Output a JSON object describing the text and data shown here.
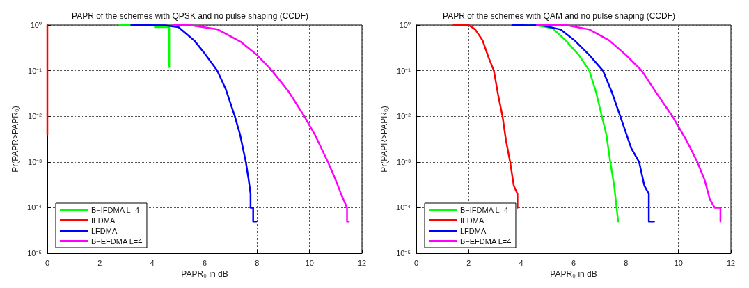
{
  "chart_data": [
    {
      "type": "line",
      "title": "PAPR of the schemes with QPSK and no pulse shaping (CCDF)",
      "xlabel": "PAPR₀ in dB",
      "ylabel": "Pr(PAPR>PAPR₀)",
      "log": "y",
      "grid": true,
      "legend": "bottom left",
      "line_style": "solid",
      "marker": "none",
      "xlim": [
        0,
        12
      ],
      "xticks": [
        0,
        2,
        4,
        6,
        8,
        10,
        12
      ],
      "ylim": [
        1e-05,
        1
      ],
      "yticks": [
        {
          "value": 1e-05,
          "label": "10⁻⁵"
        },
        {
          "value": 0.0001,
          "label": "10⁻⁴"
        },
        {
          "value": 0.001,
          "label": "10⁻³"
        },
        {
          "value": 0.01,
          "label": "10⁻²"
        },
        {
          "value": 0.1,
          "label": "10⁻¹"
        },
        {
          "value": 1,
          "label": "10⁰"
        }
      ],
      "series": [
        {
          "name": "B−IFDMA L=4",
          "color": "#00ff00",
          "x": [
            2.75,
            4.1,
            4.1,
            4.65,
            4.65
          ],
          "values": [
            1,
            1,
            0.9,
            0.9,
            0.12
          ]
        },
        {
          "name": "IFDMA",
          "color": "#ff0000",
          "x": [
            0,
            0
          ],
          "values": [
            1,
            0.004
          ]
        },
        {
          "name": "LFDMA",
          "color": "#0000ff",
          "x": [
            3.2,
            4.5,
            5,
            5.6,
            5.95,
            6.48,
            6.8,
            7.15,
            7.35,
            7.57,
            7.68,
            7.75,
            7.75,
            7.85,
            7.85,
            7.97
          ],
          "values": [
            1,
            0.98,
            0.9,
            0.46,
            0.26,
            0.1,
            0.04,
            0.01,
            0.004,
            0.001,
            0.0004,
            0.0002,
            0.0001,
            0.0001,
            5e-05,
            5e-05
          ]
        },
        {
          "name": "B−EFDMA L=4",
          "color": "#ff00ff",
          "x": [
            4.8,
            5.5,
            6.5,
            7.4,
            8.0,
            8.57,
            9.2,
            9.8,
            10.2,
            10.7,
            11.0,
            11.2,
            11.43,
            11.43,
            11.5
          ],
          "values": [
            1,
            0.98,
            0.8,
            0.42,
            0.22,
            0.1,
            0.035,
            0.01,
            0.004,
            0.001,
            0.0004,
            0.0002,
            0.0001,
            5e-05,
            5e-05
          ]
        }
      ]
    },
    {
      "type": "line",
      "title": "PAPR of the schemes with QAM and no pulse shaping (CCDF)",
      "xlabel": "PAPR₀ in dB",
      "ylabel": "Pr(PAPR>PAPR₀)",
      "log": "y",
      "grid": true,
      "legend": "bottom left",
      "line_style": "solid",
      "marker": "none",
      "xlim": [
        0,
        12
      ],
      "xticks": [
        0,
        2,
        4,
        6,
        8,
        10,
        12
      ],
      "ylim": [
        1e-05,
        1
      ],
      "yticks": [
        {
          "value": 1e-05,
          "label": "10⁻⁵"
        },
        {
          "value": 0.0001,
          "label": "10⁻⁴"
        },
        {
          "value": 0.001,
          "label": "10⁻³"
        },
        {
          "value": 0.01,
          "label": "10⁻²"
        },
        {
          "value": 0.1,
          "label": "10⁻¹"
        },
        {
          "value": 1,
          "label": "10⁰"
        }
      ],
      "series": [
        {
          "name": "B−IFDMA L=4",
          "color": "#00ff00",
          "x": [
            3.67,
            4.6,
            5.2,
            5.7,
            6.2,
            6.6,
            6.85,
            7.08,
            7.25,
            7.4,
            7.55,
            7.64,
            7.7
          ],
          "values": [
            1,
            0.98,
            0.85,
            0.46,
            0.22,
            0.1,
            0.035,
            0.01,
            0.004,
            0.001,
            0.0003,
            0.0001,
            5e-05
          ]
        },
        {
          "name": "IFDMA",
          "color": "#ff0000",
          "x": [
            1.43,
            2.0,
            2.25,
            2.53,
            2.75,
            2.96,
            3.12,
            3.29,
            3.42,
            3.58,
            3.72,
            3.86,
            3.86
          ],
          "values": [
            1,
            1,
            0.8,
            0.46,
            0.2,
            0.1,
            0.03,
            0.01,
            0.003,
            0.001,
            0.0003,
            0.0002,
            0.0001
          ]
        },
        {
          "name": "LFDMA",
          "color": "#0000ff",
          "x": [
            3.67,
            4.8,
            5.5,
            6.04,
            6.6,
            7.12,
            7.45,
            7.78,
            8.2,
            8.5,
            8.7,
            8.87,
            8.87,
            9.07
          ],
          "values": [
            1,
            0.98,
            0.8,
            0.46,
            0.22,
            0.1,
            0.035,
            0.01,
            0.002,
            0.001,
            0.0003,
            0.0002,
            5e-05,
            5e-05
          ]
        },
        {
          "name": "B−EFDMA L=4",
          "color": "#ff00ff",
          "x": [
            4.6,
            5.7,
            6.6,
            7.36,
            8.0,
            8.6,
            9.2,
            9.77,
            10.3,
            10.72,
            11.0,
            11.2,
            11.38,
            11.6,
            11.6
          ],
          "values": [
            1,
            1,
            0.8,
            0.46,
            0.22,
            0.1,
            0.03,
            0.01,
            0.003,
            0.001,
            0.0004,
            0.00015,
            0.0001,
            0.0001,
            5e-05
          ]
        }
      ]
    }
  ]
}
